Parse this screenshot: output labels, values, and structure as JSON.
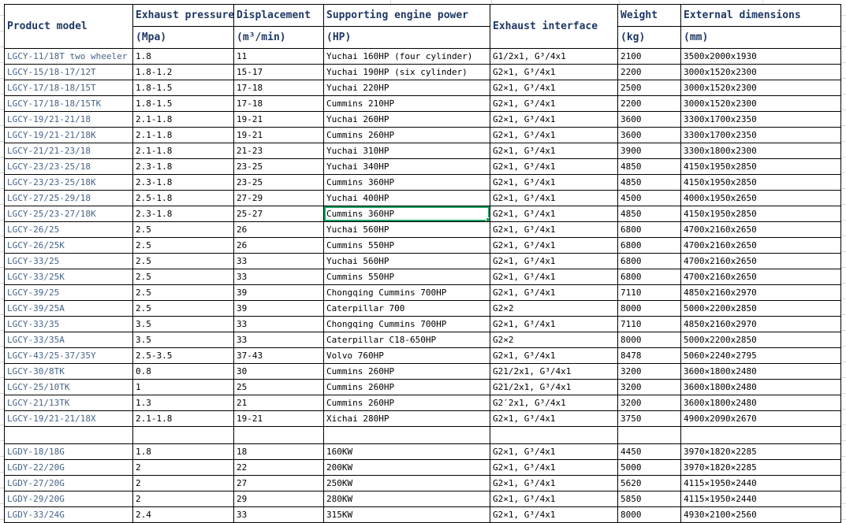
{
  "table": {
    "columns": [
      {
        "key": "model",
        "label": "Product model",
        "sub": ""
      },
      {
        "key": "pressure",
        "label": "Exhaust pressure",
        "sub": "(Mpa)"
      },
      {
        "key": "displacement",
        "label": "Displacement",
        "sub": "(m³/min)"
      },
      {
        "key": "power",
        "label": "Supporting engine power",
        "sub": "(HP)"
      },
      {
        "key": "interface",
        "label": "Exhaust interface",
        "sub": ""
      },
      {
        "key": "weight",
        "label": "Weight",
        "sub": "(kg)"
      },
      {
        "key": "dimensions",
        "label": "External dimensions",
        "sub": "(mm)"
      }
    ],
    "rows": [
      [
        "LGCY-11/18T two wheeler",
        "1.8",
        "11",
        "Yuchai 160HP (four cylinder)",
        "G1/2x1, G³/4x1",
        "2100",
        "3500x2000x1930"
      ],
      [
        "LGCY-15/18-17/12T",
        "1.8-1.2",
        "15-17",
        "Yuchai 190HP (six cylinder)",
        "G2×1, G³/4x1",
        "2200",
        "3000x1520x2300"
      ],
      [
        "LGCY-17/18-18/15T",
        "1.8-1.5",
        "17-18",
        "Yuchai 220HP",
        "G2×1, G³/4x1",
        "2500",
        "3000x1520x2300"
      ],
      [
        "LGCY-17/18-18/15TK",
        "1.8-1.5",
        "17-18",
        "Cummins 210HP",
        "G2×1, G³/4x1",
        "2200",
        "3000x1520x2300"
      ],
      [
        "LGCY-19/21-21/18",
        "2.1-1.8",
        "19-21",
        "Yuchai 260HP",
        "G2×1, G³/4x1",
        "3600",
        "3300x1700x2350"
      ],
      [
        "LGCY-19/21-21/18K",
        "2.1-1.8",
        "19-21",
        "Cummins 260HP",
        "G2×1, G³/4x1",
        "3600",
        "3300x1700x2350"
      ],
      [
        "LGCY-21/21-23/18",
        "2.1-1.8",
        "21-23",
        "Yuchai 310HP",
        "G2×1, G³/4x1",
        "3900",
        "3300x1800x2300"
      ],
      [
        "LGCY-23/23-25/18",
        "2.3-1.8",
        "23-25",
        "Yuchai 340HP",
        "G2×1, G³/4x1",
        "4850",
        "4150x1950x2850"
      ],
      [
        "LGCY-23/23-25/18K",
        "2.3-1.8",
        "23-25",
        "Cummins 360HP",
        "G2×1, G³/4x1",
        "4850",
        "4150x1950x2850"
      ],
      [
        "LGCY-27/25-29/18",
        "2.5-1.8",
        "27-29",
        "Yuchai 400HP",
        "G2×1, G³/4x1",
        "4500",
        "4000x1950x2650"
      ],
      [
        "LGCY-25/23-27/18K",
        "2.3-1.8",
        "25-27",
        "Cummins 360HP",
        "G2×1, G³/4x1",
        "4850",
        "4150x1950x2850"
      ],
      [
        "LGCY-26/25",
        "2.5",
        "26",
        "Yuchai 560HP",
        "G2×1, G³/4x1",
        "6800",
        "4700x2160x2650"
      ],
      [
        "LGCY-26/25K",
        "2.5",
        "26",
        "Cummins 550HP",
        "G2×1, G³/4x1",
        "6800",
        "4700x2160x2650"
      ],
      [
        "LGCY-33/25",
        "2.5",
        "33",
        "Yuchai 560HP",
        "G2×1, G³/4x1",
        "6800",
        "4700x2160x2650"
      ],
      [
        "LGCY-33/25K",
        "2.5",
        "33",
        "Cummins 550HP",
        "G2×1, G³/4x1",
        "6800",
        "4700x2160x2650"
      ],
      [
        "LGCY-39/25",
        "2.5",
        "39",
        "Chongqing Cummins 700HP",
        "G2×1, G³/4x1",
        "7110",
        "4850x2160x2970"
      ],
      [
        "LGCY-39/25A",
        "2.5",
        "39",
        "Caterpillar 700",
        "G2×2",
        "8000",
        "5000×2200x2850"
      ],
      [
        "LGCY-33/35",
        "3.5",
        "33",
        "Chongqing Cummins 700HP",
        "G2×1, G³/4x1",
        "7110",
        "4850x2160x2970"
      ],
      [
        "LGCY-33/35A",
        "3.5",
        "33",
        "Caterpillar C18-650HP",
        "G2×2",
        "8000",
        "5000x2200x2850"
      ],
      [
        "LGCY-43/25-37/35Y",
        "2.5-3.5",
        "37-43",
        "Volvo 760HP",
        "G2×1, G³/4x1",
        "8478",
        "5060×2240×2795"
      ],
      [
        "LGCY-30/8TK",
        "0.8",
        "30",
        "Cummins 260HP",
        "G21/2x1, G³/4x1",
        "3200",
        "3600×1800x2480"
      ],
      [
        "LGCY-25/10TK",
        "1",
        "25",
        "Cummins 260HP",
        "G21/2x1, G³/4x1",
        "3200",
        "3600x1800x2480"
      ],
      [
        "LGCY-21/13TK",
        "1.3",
        "21",
        "Cummins 260HP",
        "G2′2x1, G³/4x1",
        "3200",
        "3600x1800x2480"
      ],
      [
        "LGCY-19/21-21/18X",
        "2.1-1.8",
        "19-21",
        "Xichai 280HP",
        "G2×1, G³/4x1",
        "3750",
        "4900x2090x2670"
      ],
      [
        "",
        "",
        "",
        "",
        "",
        "",
        ""
      ],
      [
        "LGDY-18/18G",
        "1.8",
        "18",
        "160KW",
        "G2×1, G³/4x1",
        "4450",
        "3970×1820×2285"
      ],
      [
        "LGDY-22/20G",
        "2",
        "22",
        "200KW",
        "G2×1, G³/4x1",
        "5000",
        "3970×1820×2285"
      ],
      [
        "LGDY-27/20G",
        "2",
        "27",
        "250KW",
        "G2×1, G³/4x1",
        "5620",
        "4115×1950×2440"
      ],
      [
        "LGDY-29/20G",
        "2",
        "29",
        "280KW",
        "G2×1, G³/4x1",
        "5850",
        "4115×1950×2440"
      ],
      [
        "LGDY-33/24G",
        "2.4",
        "33",
        "315KW",
        "G2×1, G³/4x1",
        "8000",
        "4930×2100×2560"
      ]
    ],
    "selected_cell": {
      "row_index": 10,
      "col_index": 3,
      "value": "Cummins 360HP"
    },
    "colors": {
      "header_text": "#1F3864",
      "model_text": "#456488",
      "data_text": "#000000",
      "selection_green": "#18A05E",
      "cell_border": "#000000",
      "gridline": "#D9D9D9"
    }
  }
}
